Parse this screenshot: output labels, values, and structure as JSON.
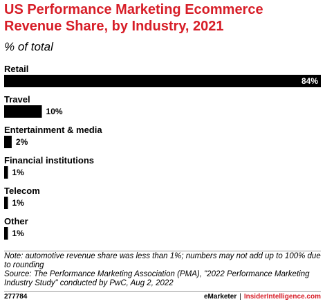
{
  "header": {
    "title": "US Performance Marketing Ecommerce Revenue Share, by Industry, 2021",
    "subtitle": "% of total"
  },
  "chart_data": {
    "type": "bar",
    "orientation": "horizontal",
    "categories": [
      "Retail",
      "Travel",
      "Entertainment & media",
      "Financial institutions",
      "Telecom",
      "Other"
    ],
    "values": [
      84,
      10,
      2,
      1,
      1,
      1
    ],
    "value_labels": [
      "84%",
      "10%",
      "2%",
      "1%",
      "1%",
      "1%"
    ],
    "xlim": [
      0,
      84
    ],
    "bar_color": "#000000",
    "grid": false,
    "legend": "none"
  },
  "notes": {
    "note": "Note: automotive revenue share was less than 1%; numbers may not add up to 100% due to rounding",
    "source": "Source: The Performance Marketing Association (PMA), \"2022 Performance Marketing Industry Study\" conducted by PwC, Aug 2, 2022"
  },
  "footer": {
    "chart_id": "277784",
    "brand_left": "eMarketer",
    "separator": "|",
    "brand_right": "InsiderIntelligence.com"
  },
  "colors": {
    "accent": "#d71e28",
    "text": "#000000"
  }
}
